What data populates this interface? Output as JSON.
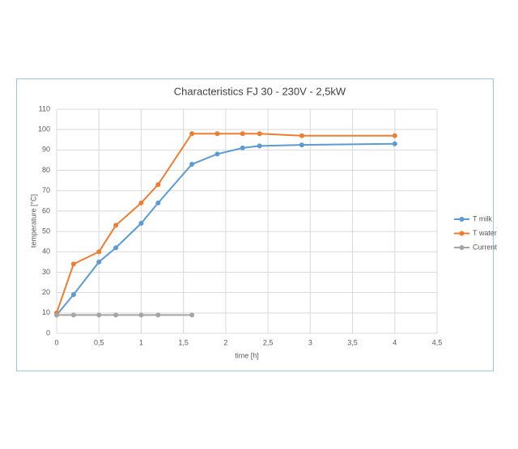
{
  "chart_data": {
    "type": "line",
    "title": "Characteristics FJ 30 - 230V - 2,5kW",
    "x_label": "time [h]",
    "y_label": "temperature [°C]",
    "xlim": [
      0,
      4.5
    ],
    "xticks": [
      0,
      {
        "value": 0.5,
        "label": "0,5"
      },
      1,
      {
        "value": 1.5,
        "label": "1,5"
      },
      2,
      {
        "value": 2.5,
        "label": "2,5"
      },
      3,
      {
        "value": 3.5,
        "label": "3,5"
      },
      4,
      {
        "value": 4.5,
        "label": "4,5"
      }
    ],
    "ylim": [
      0,
      110
    ],
    "yticks": [
      0,
      10,
      20,
      30,
      40,
      50,
      60,
      70,
      80,
      90,
      100,
      110
    ],
    "grid": true,
    "legend": "right",
    "series": [
      {
        "name": "T milk",
        "color": "#5b9bd5",
        "x": [
          0,
          0.2,
          0.5,
          0.7,
          1,
          1.2,
          1.6,
          1.9,
          2.2,
          2.4,
          2.9,
          4
        ],
        "values": [
          9,
          19,
          35,
          42,
          54,
          64,
          83,
          88,
          91,
          92,
          92.5,
          93
        ]
      },
      {
        "name": "T water",
        "color": "#ed7d31",
        "x": [
          0,
          0.2,
          0.5,
          0.7,
          1,
          1.2,
          1.6,
          1.9,
          2.2,
          2.4,
          2.9,
          4
        ],
        "values": [
          10,
          34,
          40,
          53,
          64,
          73,
          98,
          98,
          98,
          98,
          97,
          97
        ]
      },
      {
        "name": "Current",
        "color": "#a5a5a5",
        "x": [
          0,
          0.2,
          0.5,
          0.7,
          1,
          1.2,
          1.6
        ],
        "values": [
          9,
          9,
          9,
          9,
          9,
          9,
          9
        ]
      }
    ]
  }
}
